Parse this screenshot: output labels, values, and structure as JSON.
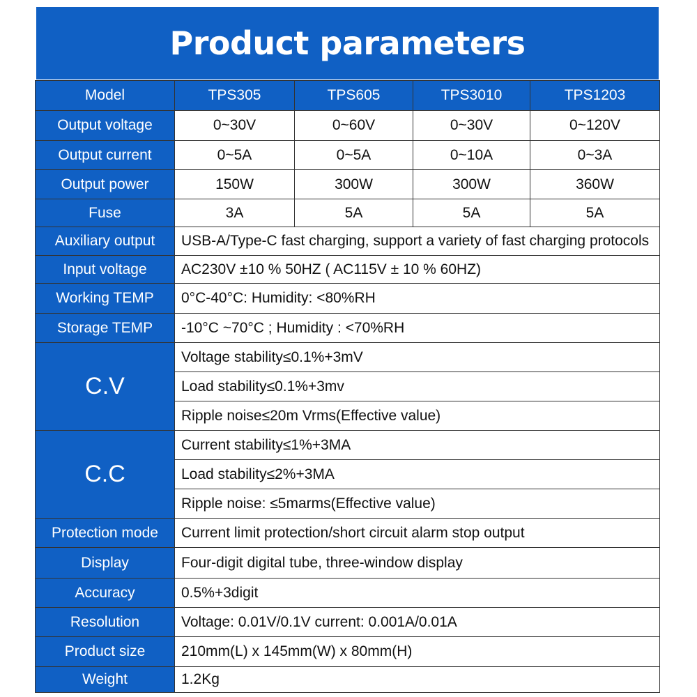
{
  "title": "Product parameters",
  "accent_color": "#1060c4",
  "header": {
    "label": "Model",
    "models": [
      "TPS305",
      "TPS605",
      "TPS3010",
      "TPS1203"
    ]
  },
  "per_model_rows": [
    {
      "label": "Output voltage",
      "values": [
        "0~30V",
        "0~60V",
        "0~30V",
        "0~120V"
      ]
    },
    {
      "label": "Output current",
      "values": [
        "0~5A",
        "0~5A",
        "0~10A",
        "0~3A"
      ]
    },
    {
      "label": "Output power",
      "values": [
        "150W",
        "300W",
        "300W",
        "360W"
      ]
    },
    {
      "label": "Fuse",
      "values": [
        "3A",
        "5A",
        "5A",
        "5A"
      ]
    }
  ],
  "shared_rows": [
    {
      "label": "Auxiliary output",
      "values": [
        "USB-A/Type-C fast charging, support a variety of fast charging protocols"
      ]
    },
    {
      "label": "Input voltage",
      "values": [
        "AC230V ±10 % 50HZ ( AC115V ± 10 % 60HZ)"
      ]
    },
    {
      "label": "Working TEMP",
      "values": [
        "0°C-40°C: Humidity: <80%RH"
      ]
    },
    {
      "label": "Storage TEMP",
      "values": [
        "-10°C ~70°C ; Humidity : <70%RH"
      ]
    },
    {
      "label": "C.V",
      "big": true,
      "values": [
        "Voltage stability≤0.1%+3mV",
        "Load stability≤0.1%+3mv",
        "Ripple noise≤20m Vrms(Effective value)"
      ]
    },
    {
      "label": "C.C",
      "big": true,
      "values": [
        "Current stability≤1%+3MA",
        "Load stability≤2%+3MA",
        "Ripple noise: ≤5marms(Effective value)"
      ]
    },
    {
      "label": "Protection mode",
      "values": [
        "Current limit protection/short circuit alarm stop output"
      ]
    },
    {
      "label": "Display",
      "values": [
        "Four-digit digital tube, three-window display"
      ]
    },
    {
      "label": "Accuracy",
      "values": [
        "0.5%+3digit"
      ]
    },
    {
      "label": "Resolution",
      "values": [
        "Voltage: 0.01V/0.1V  current: 0.001A/0.01A"
      ]
    },
    {
      "label": "Product size",
      "values": [
        "210mm(L)  x 145mm(W) x 80mm(H)"
      ]
    },
    {
      "label": "Weight",
      "values": [
        "1.2Kg"
      ]
    }
  ]
}
